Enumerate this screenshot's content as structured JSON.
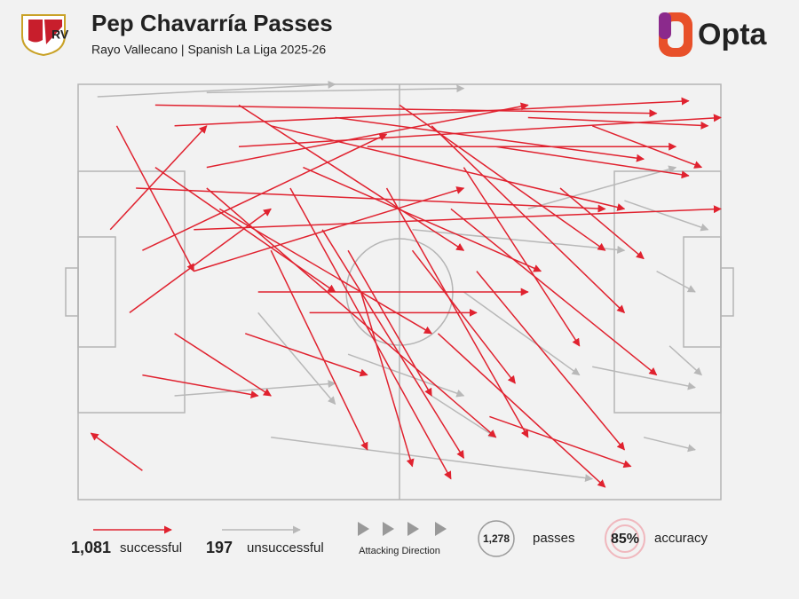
{
  "chart_data": {
    "type": "passmap",
    "title": "Pep Chavarría Passes",
    "subtitle": "Rayo Vallecano | Spanish La Liga 2025-26",
    "brand": "Opta",
    "xlim": [
      0,
      100
    ],
    "ylim": [
      0,
      100
    ],
    "series": [
      {
        "name": "successful",
        "color": "#e0222f",
        "count": "1,081",
        "passes": [
          [
            5,
            35,
            20,
            10
          ],
          [
            12,
            5,
            90,
            7
          ],
          [
            15,
            10,
            95,
            4
          ],
          [
            20,
            20,
            70,
            5
          ],
          [
            25,
            15,
            100,
            8
          ],
          [
            10,
            40,
            48,
            12
          ],
          [
            18,
            45,
            60,
            25
          ],
          [
            30,
            10,
            85,
            30
          ],
          [
            8,
            55,
            30,
            30
          ],
          [
            22,
            30,
            55,
            60
          ],
          [
            35,
            20,
            72,
            45
          ],
          [
            40,
            8,
            88,
            18
          ],
          [
            15,
            60,
            30,
            75
          ],
          [
            28,
            50,
            70,
            50
          ],
          [
            45,
            15,
            93,
            15
          ],
          [
            50,
            5,
            82,
            40
          ],
          [
            33,
            25,
            58,
            95
          ],
          [
            20,
            25,
            65,
            85
          ],
          [
            38,
            35,
            60,
            90
          ],
          [
            55,
            10,
            85,
            55
          ],
          [
            60,
            20,
            78,
            63
          ],
          [
            42,
            40,
            55,
            75
          ],
          [
            48,
            25,
            70,
            85
          ],
          [
            58,
            30,
            90,
            70
          ],
          [
            10,
            70,
            28,
            75
          ],
          [
            65,
            15,
            95,
            22
          ],
          [
            70,
            8,
            98,
            10
          ],
          [
            12,
            20,
            40,
            50
          ],
          [
            6,
            10,
            18,
            45
          ],
          [
            25,
            5,
            60,
            40
          ],
          [
            30,
            40,
            45,
            88
          ],
          [
            52,
            40,
            68,
            72
          ],
          [
            62,
            45,
            85,
            88
          ],
          [
            75,
            25,
            88,
            42
          ],
          [
            80,
            10,
            97,
            20
          ],
          [
            18,
            35,
            100,
            30
          ],
          [
            26,
            60,
            45,
            70
          ],
          [
            36,
            55,
            62,
            55
          ],
          [
            44,
            50,
            52,
            92
          ],
          [
            10,
            93,
            2,
            84
          ],
          [
            56,
            60,
            82,
            97
          ],
          [
            64,
            80,
            86,
            92
          ],
          [
            9,
            25,
            82,
            30
          ]
        ]
      },
      {
        "name": "unsuccessful",
        "color": "#b8b8b8",
        "count": "197",
        "passes": [
          [
            3,
            3,
            40,
            0
          ],
          [
            20,
            2,
            60,
            1
          ],
          [
            85,
            28,
            98,
            35
          ],
          [
            90,
            45,
            96,
            50
          ],
          [
            92,
            63,
            97,
            70
          ],
          [
            80,
            68,
            96,
            73
          ],
          [
            30,
            85,
            80,
            95
          ],
          [
            28,
            55,
            40,
            77
          ],
          [
            52,
            35,
            85,
            40
          ],
          [
            60,
            50,
            78,
            70
          ],
          [
            70,
            30,
            93,
            20
          ],
          [
            42,
            65,
            60,
            75
          ],
          [
            55,
            75,
            65,
            85
          ],
          [
            88,
            85,
            96,
            88
          ],
          [
            15,
            75,
            40,
            72
          ]
        ]
      }
    ],
    "direction_label": "Attacking Direction",
    "total": {
      "value": "1,278",
      "label": "passes"
    },
    "accuracy": {
      "value": "85%",
      "label": "accuracy"
    }
  }
}
